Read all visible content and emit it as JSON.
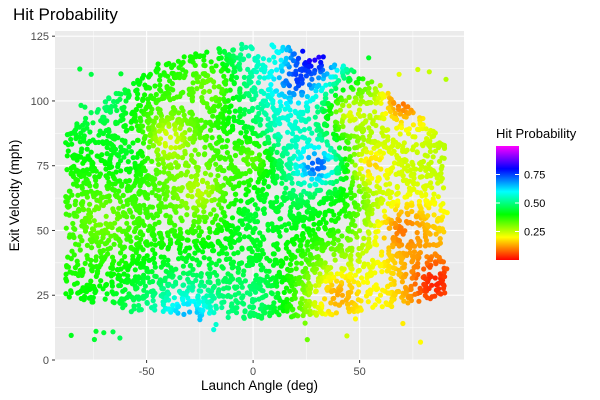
{
  "chart_data": {
    "type": "scatter",
    "title": "Hit Probability",
    "xlabel": "Launch Angle (deg)",
    "ylabel": "Exit Velocity (mph)",
    "xlim": [
      -93,
      99
    ],
    "ylim": [
      0,
      127
    ],
    "x_ticks": [
      -50,
      0,
      50
    ],
    "y_ticks": [
      0,
      25,
      50,
      75,
      100,
      125
    ],
    "grid": true,
    "legend": {
      "title": "Hit Probability",
      "position": "right",
      "range": [
        0,
        1
      ],
      "ticks": [
        0.25,
        0.5,
        0.75
      ],
      "tick_labels": [
        "0.25",
        "0.50",
        "0.75"
      ]
    },
    "color_scale": [
      "#ff0000",
      "#ffff00",
      "#00ff00",
      "#00ffff",
      "#0000ff",
      "#ff00ff"
    ],
    "regions": [
      {
        "x": -70,
        "y": 55,
        "p": 0.3
      },
      {
        "x": -58,
        "y": 80,
        "p": 0.45
      },
      {
        "x": -70,
        "y": 100,
        "p": 0.5
      },
      {
        "x": -40,
        "y": 85,
        "p": 0.18
      },
      {
        "x": -25,
        "y": 65,
        "p": 0.22
      },
      {
        "x": -20,
        "y": 105,
        "p": 0.28
      },
      {
        "x": 0,
        "y": 78,
        "p": 0.28
      },
      {
        "x": 0,
        "y": 55,
        "p": 0.45
      },
      {
        "x": 0,
        "y": 25,
        "p": 0.5
      },
      {
        "x": -30,
        "y": 15,
        "p": 0.7
      },
      {
        "x": 10,
        "y": 115,
        "p": 0.55
      },
      {
        "x": 15,
        "y": 90,
        "p": 0.6
      },
      {
        "x": 20,
        "y": 108,
        "p": 0.85
      },
      {
        "x": 28,
        "y": 118,
        "p": 0.95
      },
      {
        "x": 30,
        "y": 75,
        "p": 0.88
      },
      {
        "x": 35,
        "y": 60,
        "p": 0.4
      },
      {
        "x": 45,
        "y": 95,
        "p": 0.15
      },
      {
        "x": 55,
        "y": 75,
        "p": 0.1
      },
      {
        "x": 70,
        "y": 50,
        "p": 0.06
      },
      {
        "x": 70,
        "y": 100,
        "p": 0.04
      },
      {
        "x": 40,
        "y": 25,
        "p": 0.1
      },
      {
        "x": 85,
        "y": 30,
        "p": 0.0
      }
    ]
  }
}
